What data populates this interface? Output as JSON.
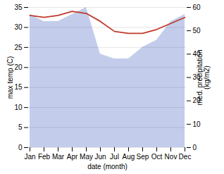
{
  "chart_data": {
    "type": "line",
    "categories": [
      "Jan",
      "Feb",
      "Mar",
      "Apr",
      "May",
      "Jun",
      "Jul",
      "Aug",
      "Sep",
      "Oct",
      "Nov",
      "Dec"
    ],
    "series": [
      {
        "type": "area",
        "axis": "y2",
        "color": "#b8c4e8",
        "values": [
          57,
          54,
          54,
          57,
          60,
          40,
          38,
          38,
          43,
          46,
          54,
          57
        ]
      },
      {
        "type": "line",
        "color": "#c0392b",
        "values": [
          33.0,
          32.5,
          33.0,
          34.0,
          33.5,
          31.5,
          29.0,
          28.5,
          28.5,
          29.5,
          31.0,
          32.5
        ]
      }
    ],
    "xlabel": "date (month)",
    "ylabel": "max temp (C)",
    "y2label": "med. precipitation\n(kg/m2)",
    "ylim": [
      0,
      35
    ],
    "yticks": [
      0,
      5,
      10,
      15,
      20,
      25,
      30,
      35
    ],
    "y2lim": [
      0,
      60
    ],
    "y2ticks": [
      0,
      10,
      20,
      30,
      40,
      50,
      60
    ],
    "grid": true
  }
}
